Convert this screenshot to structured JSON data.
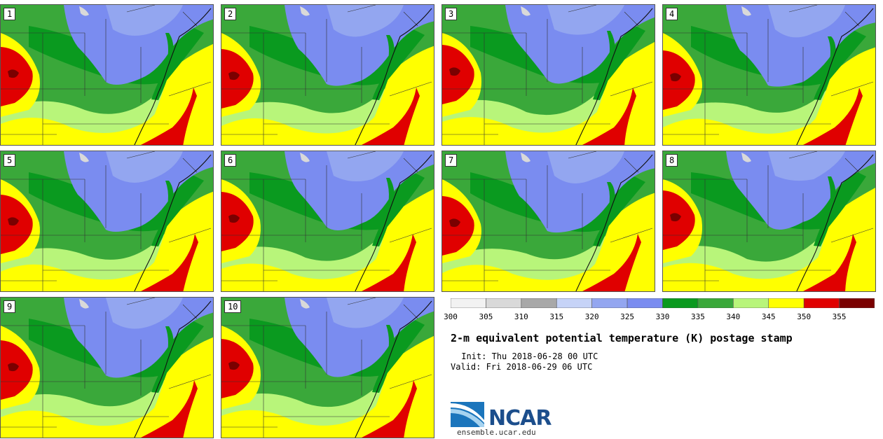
{
  "title": "2-m equivalent potential temperature (K) postage stamp",
  "init": " Init: Thu 2018-06-28 00 UTC",
  "valid": "Valid: Fri 2018-06-29 06 UTC",
  "colorbar": {
    "ticks": [
      "300",
      "305",
      "310",
      "315",
      "320",
      "325",
      "330",
      "335",
      "340",
      "345",
      "350",
      "355"
    ],
    "colors": [
      "#f2f2f2",
      "#d9d9d9",
      "#a8a8a8",
      "#c6d3f7",
      "#93a6f0",
      "#7a8cf0",
      "#0a9a1f",
      "#3aa83a",
      "#b8f57a",
      "#ffff00",
      "#e00000",
      "#7a0000"
    ]
  },
  "panels": [
    {
      "label": "1",
      "shift": 0
    },
    {
      "label": "2",
      "shift": 3
    },
    {
      "label": "3",
      "shift": -3
    },
    {
      "label": "4",
      "shift": 5
    },
    {
      "label": "5",
      "shift": 2
    },
    {
      "label": "6",
      "shift": -2
    },
    {
      "label": "7",
      "shift": 4
    },
    {
      "label": "8",
      "shift": -4
    },
    {
      "label": "9",
      "shift": 1
    },
    {
      "label": "10",
      "shift": -1
    }
  ],
  "logo": {
    "text": "NCAR",
    "site": "ensemble.ucar.edu"
  }
}
